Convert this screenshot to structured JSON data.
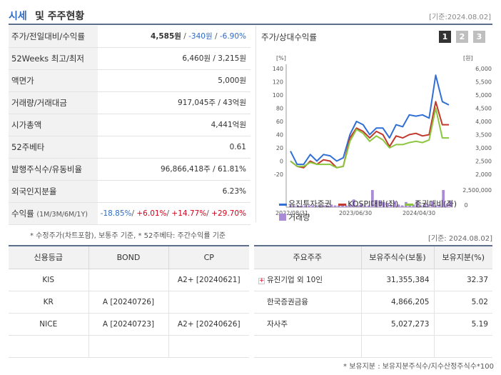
{
  "header": {
    "title_blue": "시세",
    "title_rest": "및 주주현황",
    "date": "[기준:2024.08.02]"
  },
  "price": {
    "r1_label": "주가/전일대비/수익률",
    "r1_price": "4,585원",
    "r1_sep1": " / ",
    "r1_change": "-340원",
    "r1_sep2": " / ",
    "r1_rate": "-6.90%",
    "r2_label": "52Weeks 최고/최저",
    "r2_value": "6,460원 / 3,215원",
    "r3_label": "액면가",
    "r3_value": "5,000원",
    "r4_label": "거래량/거래대금",
    "r4_value": "917,045주 / 43억원",
    "r5_label": "시가총액",
    "r5_value": "4,441억원",
    "r6_label": "52주베타",
    "r6_value": "0.61",
    "r7_label": "발행주식수/유동비율",
    "r7_value": "96,866,418주 / 61.81%",
    "r8_label": "외국인지분율",
    "r8_value": "6.23%",
    "r9_label": "수익률",
    "r9_sub": "(1M/3M/6M/1Y)",
    "r9_v1": "-18.85%",
    "r9_s1": "/ ",
    "r9_v2": "+6.01%",
    "r9_s2": "/ ",
    "r9_v3": "+14.77%",
    "r9_s3": "/ ",
    "r9_v4": "+29.70%",
    "note": "* 수정주가(차트포함), 보통주 기준, * 52주베타: 주간수익률 기준"
  },
  "chart_panel": {
    "title": "주가/상대수익률",
    "tabs": [
      "1",
      "2",
      "3"
    ],
    "legend": [
      {
        "label": "유진투자증권",
        "color": "#2f6fd6"
      },
      {
        "label": "KOSPI대비(좌)",
        "color": "#c0392b"
      },
      {
        "label": "증권대비(좌)",
        "color": "#8cc63f"
      },
      {
        "label": "거래량",
        "color": "#a98bd6"
      }
    ]
  },
  "chart_data": {
    "type": "line",
    "left_axis_unit": "[%]",
    "right_axis_unit": "[원]",
    "left_ticks": [
      "140",
      "120",
      "100",
      "80",
      "60",
      "40",
      "20",
      "0",
      "-20"
    ],
    "right_ticks": [
      "6,000",
      "5,500",
      "5,000",
      "4,500",
      "4,000",
      "3,500",
      "3,000",
      "2,500",
      "2,000"
    ],
    "volume_ticks": [
      "2,500,000",
      "0"
    ],
    "x_ticks": [
      "2022/08/31",
      "2023/06/30",
      "2024/04/30"
    ],
    "ylim_left": [
      -20,
      140
    ],
    "ylim_right": [
      2000,
      6000
    ],
    "series": [
      {
        "name": "유진투자증권",
        "axis": "left",
        "color": "#2f6fd6",
        "values": [
          15,
          -5,
          -5,
          10,
          0,
          10,
          8,
          0,
          5,
          40,
          60,
          55,
          40,
          50,
          50,
          35,
          55,
          52,
          70,
          68,
          70,
          65,
          130,
          90,
          85
        ]
      },
      {
        "name": "KOSPI대비(좌)",
        "axis": "left",
        "color": "#c0392b",
        "values": [
          0,
          -8,
          -10,
          0,
          -5,
          2,
          0,
          -10,
          -8,
          35,
          50,
          45,
          35,
          45,
          40,
          22,
          38,
          35,
          40,
          42,
          38,
          40,
          90,
          55,
          55
        ]
      },
      {
        "name": "증권대비(좌)",
        "axis": "left",
        "color": "#8cc63f",
        "values": [
          0,
          -8,
          -8,
          -2,
          -5,
          -5,
          -5,
          -10,
          -8,
          30,
          48,
          42,
          30,
          38,
          32,
          20,
          25,
          25,
          28,
          30,
          28,
          32,
          80,
          35,
          35
        ]
      },
      {
        "name": "거래량",
        "type": "bar",
        "color": "#a98bd6",
        "values": [
          0.1,
          0.1,
          0.1,
          0.1,
          0.1,
          0.1,
          0.1,
          0.1,
          0.1,
          0.1,
          0.1,
          0.15,
          0.1,
          0.1,
          0.1,
          0.1,
          0.15,
          0.45,
          0.1,
          0.2,
          0.1,
          0.1,
          1.0,
          0.4,
          0.4,
          0.3,
          0.25,
          0.1,
          0.35,
          0.15,
          0.1,
          0.3,
          0.1,
          0.15,
          0.35,
          0.1,
          0.2,
          0.15,
          0.35,
          0.1,
          0.15,
          1.0,
          0.2,
          0.35
        ]
      }
    ]
  },
  "right_date": "[기준: 2024.08.02]",
  "credit": {
    "headers": [
      "신용등급",
      "BOND",
      "CP"
    ],
    "rows": [
      [
        "KIS",
        "",
        "A2+ [20240621]"
      ],
      [
        "KR",
        "A [20240726]",
        ""
      ],
      [
        "NICE",
        "A [20240723]",
        "A2+ [20240626]"
      ],
      [
        "",
        "",
        ""
      ]
    ]
  },
  "holders": {
    "headers": [
      "주요주주",
      "보유주식수(보통)",
      "보유지분(%)"
    ],
    "rows": [
      [
        "유진기업 외 10인",
        "31,355,384",
        "32.37"
      ],
      [
        "한국증권금융",
        "4,866,205",
        "5.02"
      ],
      [
        "자사주",
        "5,027,273",
        "5.19"
      ],
      [
        "",
        "",
        ""
      ]
    ],
    "note": "* 보유지분 : 보유지분주식수/지수산정주식수*100"
  }
}
